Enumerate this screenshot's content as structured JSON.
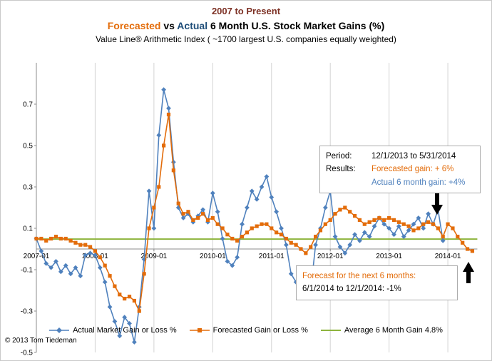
{
  "titles": {
    "line1": "2007 to Present",
    "line2_parts": {
      "p1": "Forecasted",
      "p2": " vs ",
      "p3": "Actual",
      "p4": " 6 Month U.S. Stock Market Gains (%)"
    },
    "line3": "Value Line® Arithmetic Index ( ~1700 largest U.S. companies equally weighted)"
  },
  "colors": {
    "maroon": "#7D3125",
    "orange": "#E36C0A",
    "dark_blue": "#1F4E79",
    "blue": "#4F81BD",
    "green": "#8EB43E",
    "grid": "#D4D4D4",
    "axis": "#8C8C8C",
    "black": "#000000"
  },
  "annotations": {
    "period_box": {
      "row1_label": "Period:",
      "row1_value": "12/1/2013 to 5/31/2014",
      "row2_label": "Results:",
      "row2_value": "Forecasted gain: + 6%",
      "row3_value": "Actual 6 month gain:  +4%"
    },
    "forecast_box": {
      "line1": "Forecast for the next 6 months:",
      "line2": "6/1/2014 to 12/1/2014:  -1%"
    }
  },
  "copyright": "© 2013 Tom Tiedeman",
  "chart_data": {
    "type": "line",
    "title": "Forecasted vs Actual 6 Month U.S. Stock Market Gains (%)",
    "subtitle": "2007 to Present",
    "note": "Value Line® Arithmetic Index ( ~1700 largest U.S. companies equally weighted)",
    "xlabel": "",
    "ylabel": "",
    "ylim": [
      -0.5,
      0.9
    ],
    "y_ticks": [
      0.7,
      0.5,
      0.3,
      0.1,
      -0.1,
      -0.3,
      -0.5
    ],
    "x_tick_labels": [
      "2007-01",
      "2008-01",
      "2009-01",
      "2010-01",
      "2011-01",
      "2012-01",
      "2013-01",
      "2014-01"
    ],
    "layout": {
      "legend_position": "bottom",
      "vertical_gridlines": true,
      "horizontal_gridlines": false
    },
    "x_months": [
      "2007-01",
      "2007-02",
      "2007-03",
      "2007-04",
      "2007-05",
      "2007-06",
      "2007-07",
      "2007-08",
      "2007-09",
      "2007-10",
      "2007-11",
      "2007-12",
      "2008-01",
      "2008-02",
      "2008-03",
      "2008-04",
      "2008-05",
      "2008-06",
      "2008-07",
      "2008-08",
      "2008-09",
      "2008-10",
      "2008-11",
      "2008-12",
      "2009-01",
      "2009-02",
      "2009-03",
      "2009-04",
      "2009-05",
      "2009-06",
      "2009-07",
      "2009-08",
      "2009-09",
      "2009-10",
      "2009-11",
      "2009-12",
      "2010-01",
      "2010-02",
      "2010-03",
      "2010-04",
      "2010-05",
      "2010-06",
      "2010-07",
      "2010-08",
      "2010-09",
      "2010-10",
      "2010-11",
      "2010-12",
      "2011-01",
      "2011-02",
      "2011-03",
      "2011-04",
      "2011-05",
      "2011-06",
      "2011-07",
      "2011-08",
      "2011-09",
      "2011-10",
      "2011-11",
      "2011-12",
      "2012-01",
      "2012-02",
      "2012-03",
      "2012-04",
      "2012-05",
      "2012-06",
      "2012-07",
      "2012-08",
      "2012-09",
      "2012-10",
      "2012-11",
      "2012-12",
      "2013-01",
      "2013-02",
      "2013-03",
      "2013-04",
      "2013-05",
      "2013-06",
      "2013-07",
      "2013-08",
      "2013-09",
      "2013-10",
      "2013-11",
      "2013-12",
      "2014-01",
      "2014-02",
      "2014-03",
      "2014-04",
      "2014-05",
      "2014-06"
    ],
    "series": [
      {
        "name": "Actual Market Gain or Loss %",
        "color": "#4F81BD",
        "marker": "diamond",
        "values": [
          0.05,
          -0.01,
          -0.07,
          -0.09,
          -0.06,
          -0.11,
          -0.08,
          -0.12,
          -0.09,
          -0.13,
          -0.03,
          -0.02,
          -0.03,
          -0.09,
          -0.16,
          -0.28,
          -0.35,
          -0.42,
          -0.33,
          -0.36,
          -0.45,
          -0.28,
          -0.05,
          0.28,
          0.1,
          0.55,
          0.77,
          0.68,
          0.42,
          0.2,
          0.15,
          0.17,
          0.13,
          0.16,
          0.19,
          0.13,
          0.27,
          0.18,
          0.05,
          -0.06,
          -0.08,
          -0.04,
          0.12,
          0.2,
          0.28,
          0.24,
          0.3,
          0.35,
          0.25,
          0.18,
          0.1,
          0.02,
          -0.12,
          -0.16,
          -0.22,
          -0.13,
          -0.2,
          0.02,
          0.1,
          0.2,
          0.28,
          0.06,
          0.01,
          -0.02,
          0.02,
          0.07,
          0.04,
          0.08,
          0.06,
          0.11,
          0.15,
          0.12,
          0.1,
          0.07,
          0.11,
          0.06,
          0.09,
          0.12,
          0.15,
          0.1,
          0.17,
          0.12,
          0.19,
          0.04
        ]
      },
      {
        "name": "Forecasted Gain or Loss %",
        "color": "#E36C0A",
        "marker": "square",
        "values": [
          0.05,
          0.05,
          0.04,
          0.05,
          0.06,
          0.05,
          0.05,
          0.04,
          0.03,
          0.02,
          0.02,
          0.01,
          -0.01,
          -0.04,
          -0.08,
          -0.13,
          -0.18,
          -0.22,
          -0.24,
          -0.23,
          -0.25,
          -0.3,
          -0.12,
          0.1,
          0.2,
          0.3,
          0.5,
          0.65,
          0.38,
          0.22,
          0.17,
          0.18,
          0.14,
          0.15,
          0.17,
          0.14,
          0.15,
          0.12,
          0.1,
          0.07,
          0.05,
          0.04,
          0.06,
          0.08,
          0.1,
          0.11,
          0.12,
          0.12,
          0.1,
          0.08,
          0.07,
          0.05,
          0.03,
          0.02,
          0.0,
          -0.02,
          0.01,
          0.06,
          0.09,
          0.12,
          0.14,
          0.17,
          0.19,
          0.2,
          0.18,
          0.16,
          0.14,
          0.12,
          0.13,
          0.14,
          0.15,
          0.14,
          0.15,
          0.14,
          0.13,
          0.12,
          0.11,
          0.09,
          0.1,
          0.12,
          0.13,
          0.12,
          0.1,
          0.06,
          0.12,
          0.1,
          0.06,
          0.03,
          0.0,
          -0.01
        ]
      }
    ],
    "average_line": {
      "name": "Average 6 Month Gain 4.8%",
      "color": "#8EB43E",
      "value": 0.048
    }
  }
}
